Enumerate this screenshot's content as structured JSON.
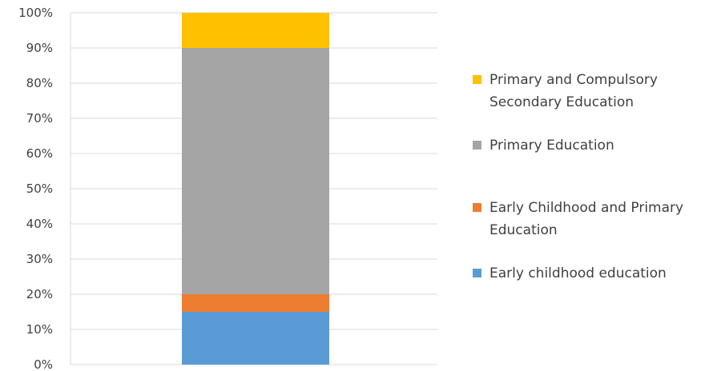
{
  "chart_data": {
    "type": "bar",
    "stacked": true,
    "categories": [
      ""
    ],
    "y_tick_labels": [
      "0%",
      "10%",
      "20%",
      "30%",
      "40%",
      "50%",
      "60%",
      "70%",
      "80%",
      "90%",
      "100%"
    ],
    "ylim": [
      0,
      100
    ],
    "grid": true,
    "legend_position": "right",
    "series": [
      {
        "name": "Early childhood education",
        "values": [
          15
        ],
        "color": "#5b9bd5"
      },
      {
        "name": "Early Childhood and Primary Education",
        "values": [
          5
        ],
        "color": "#ed7d31"
      },
      {
        "name": "Primary Education",
        "values": [
          70
        ],
        "color": "#a5a5a5"
      },
      {
        "name": "Primary and Compulsory Secondary Education",
        "values": [
          10
        ],
        "color": "#ffc000"
      }
    ]
  },
  "legend": {
    "items": [
      {
        "label": "Primary and Compulsory Secondary Education",
        "color": "#ffc000"
      },
      {
        "label": "Primary Education",
        "color": "#a5a5a5"
      },
      {
        "label": "Early Childhood and Primary Education",
        "color": "#ed7d31"
      },
      {
        "label": "Early childhood education",
        "color": "#5b9bd5"
      }
    ]
  }
}
